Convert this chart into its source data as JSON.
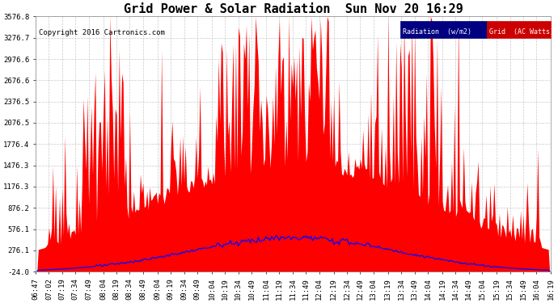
{
  "title": "Grid Power & Solar Radiation  Sun Nov 20 16:29",
  "copyright": "Copyright 2016 Cartronics.com",
  "yticks": [
    3576.8,
    3276.7,
    2976.6,
    2676.6,
    2376.5,
    2076.5,
    1776.4,
    1476.3,
    1176.3,
    876.2,
    576.1,
    276.1,
    -24.0
  ],
  "ymin": -24.0,
  "ymax": 3576.8,
  "legend_radiation_label": "Radiation  (w/m2)",
  "legend_grid_label": "Grid  (AC Watts)",
  "legend_radiation_bg": "#000080",
  "legend_grid_bg": "#CC0000",
  "fill_color": "#FF0000",
  "line_color": "#0000FF",
  "background_color": "#FFFFFF",
  "plot_bg_color": "#FFFFFF",
  "grid_color": "#BBBBBB",
  "title_fontsize": 11,
  "copyright_fontsize": 6.5,
  "tick_fontsize": 6.5,
  "xtick_rotation": 90,
  "xtick_labels": [
    "06:47",
    "07:02",
    "07:19",
    "07:34",
    "07:49",
    "08:04",
    "08:19",
    "08:34",
    "08:49",
    "09:04",
    "09:19",
    "09:34",
    "09:49",
    "10:04",
    "10:19",
    "10:34",
    "10:49",
    "11:04",
    "11:19",
    "11:34",
    "11:49",
    "12:04",
    "12:19",
    "12:34",
    "12:49",
    "13:04",
    "13:19",
    "13:34",
    "13:49",
    "14:04",
    "14:19",
    "14:34",
    "14:49",
    "15:04",
    "15:19",
    "15:34",
    "15:49",
    "16:04",
    "16:19"
  ]
}
